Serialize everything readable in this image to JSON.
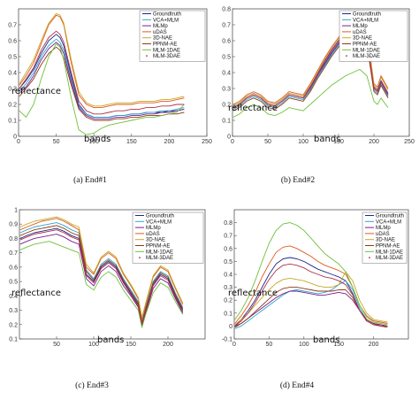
{
  "legend_labels": [
    "Groundtruth",
    "VCA+MLM",
    "MLMp",
    "uDAS",
    "3D-NAE",
    "PPNM-AE",
    "MLM-1DAE",
    "MLM-3DAE"
  ],
  "series_colors": [
    "#1f2a8a",
    "#2ca6c8",
    "#7a1f8f",
    "#e05a1a",
    "#c8a82a",
    "#8f3a1a",
    "#6ec13a",
    "#b03048"
  ],
  "chart_data": [
    {
      "type": "line",
      "caption": "(a) End#1",
      "xlabel": "bands",
      "ylabel": "reflectance",
      "xlim": [
        0,
        250
      ],
      "ylim": [
        0,
        0.8
      ],
      "xticks": [
        0,
        50,
        100,
        150,
        200,
        250
      ],
      "yticks": [
        0,
        0.1,
        0.2,
        0.3,
        0.4,
        0.5,
        0.6,
        0.7
      ],
      "x": [
        1,
        10,
        20,
        30,
        40,
        50,
        55,
        60,
        70,
        80,
        90,
        100,
        110,
        120,
        130,
        140,
        150,
        160,
        170,
        180,
        190,
        200,
        210,
        220
      ],
      "series": [
        {
          "name": "Groundtruth",
          "values": [
            0.3,
            0.35,
            0.42,
            0.52,
            0.6,
            0.64,
            0.62,
            0.57,
            0.38,
            0.2,
            0.14,
            0.12,
            0.12,
            0.12,
            0.13,
            0.13,
            0.14,
            0.14,
            0.15,
            0.15,
            0.15,
            0.16,
            0.16,
            0.17
          ]
        },
        {
          "name": "VCA+MLM",
          "values": [
            0.28,
            0.33,
            0.4,
            0.5,
            0.57,
            0.61,
            0.59,
            0.54,
            0.36,
            0.19,
            0.14,
            0.12,
            0.12,
            0.12,
            0.13,
            0.13,
            0.14,
            0.14,
            0.15,
            0.15,
            0.16,
            0.16,
            0.17,
            0.18
          ]
        },
        {
          "name": "MLMp",
          "values": [
            0.27,
            0.31,
            0.38,
            0.48,
            0.55,
            0.59,
            0.57,
            0.52,
            0.34,
            0.18,
            0.13,
            0.11,
            0.11,
            0.11,
            0.12,
            0.12,
            0.13,
            0.13,
            0.14,
            0.14,
            0.15,
            0.15,
            0.16,
            0.17
          ]
        },
        {
          "name": "uDAS",
          "values": [
            0.32,
            0.38,
            0.46,
            0.58,
            0.7,
            0.76,
            0.75,
            0.7,
            0.46,
            0.26,
            0.2,
            0.18,
            0.18,
            0.19,
            0.2,
            0.2,
            0.2,
            0.21,
            0.21,
            0.21,
            0.22,
            0.22,
            0.23,
            0.24
          ]
        },
        {
          "name": "3D-NAE",
          "values": [
            0.33,
            0.4,
            0.48,
            0.6,
            0.71,
            0.77,
            0.76,
            0.71,
            0.48,
            0.28,
            0.21,
            0.19,
            0.19,
            0.2,
            0.21,
            0.21,
            0.21,
            0.22,
            0.22,
            0.22,
            0.23,
            0.23,
            0.24,
            0.25
          ]
        },
        {
          "name": "PPNM-AE",
          "values": [
            0.25,
            0.3,
            0.36,
            0.45,
            0.52,
            0.56,
            0.54,
            0.49,
            0.32,
            0.17,
            0.12,
            0.1,
            0.1,
            0.1,
            0.11,
            0.11,
            0.12,
            0.12,
            0.13,
            0.13,
            0.13,
            0.14,
            0.14,
            0.15
          ]
        },
        {
          "name": "MLM-1DAE",
          "values": [
            0.16,
            0.12,
            0.2,
            0.36,
            0.5,
            0.58,
            0.56,
            0.48,
            0.24,
            0.04,
            0.01,
            0.02,
            0.05,
            0.07,
            0.08,
            0.09,
            0.1,
            0.11,
            0.12,
            0.12,
            0.13,
            0.14,
            0.15,
            0.2
          ]
        },
        {
          "name": "MLM-3DAE",
          "values": [
            0.3,
            0.36,
            0.43,
            0.54,
            0.62,
            0.66,
            0.64,
            0.59,
            0.4,
            0.22,
            0.16,
            0.14,
            0.14,
            0.15,
            0.16,
            0.16,
            0.17,
            0.17,
            0.18,
            0.18,
            0.19,
            0.19,
            0.2,
            0.2
          ]
        }
      ]
    },
    {
      "type": "line",
      "caption": "(b) End#2",
      "xlabel": "bands",
      "ylabel": "reflectance",
      "xlim": [
        0,
        250
      ],
      "ylim": [
        0,
        0.8
      ],
      "xticks": [
        0,
        50,
        100,
        150,
        200,
        250
      ],
      "yticks": [
        0,
        0.1,
        0.2,
        0.3,
        0.4,
        0.5,
        0.6,
        0.7,
        0.8
      ],
      "x": [
        1,
        10,
        20,
        30,
        40,
        50,
        60,
        70,
        80,
        90,
        100,
        110,
        120,
        130,
        140,
        150,
        160,
        170,
        180,
        185,
        190,
        200,
        205,
        210,
        220
      ],
      "series": [
        {
          "name": "Groundtruth",
          "values": [
            0.18,
            0.2,
            0.24,
            0.26,
            0.24,
            0.2,
            0.19,
            0.22,
            0.26,
            0.25,
            0.24,
            0.3,
            0.38,
            0.45,
            0.52,
            0.58,
            0.63,
            0.67,
            0.68,
            0.64,
            0.6,
            0.3,
            0.28,
            0.34,
            0.26
          ]
        },
        {
          "name": "VCA+MLM",
          "values": [
            0.17,
            0.19,
            0.23,
            0.25,
            0.23,
            0.19,
            0.18,
            0.21,
            0.25,
            0.24,
            0.23,
            0.29,
            0.37,
            0.44,
            0.51,
            0.57,
            0.62,
            0.66,
            0.67,
            0.63,
            0.59,
            0.29,
            0.27,
            0.33,
            0.25
          ]
        },
        {
          "name": "MLMp",
          "values": [
            0.19,
            0.21,
            0.25,
            0.27,
            0.25,
            0.21,
            0.2,
            0.23,
            0.27,
            0.26,
            0.25,
            0.31,
            0.39,
            0.47,
            0.54,
            0.6,
            0.65,
            0.69,
            0.7,
            0.66,
            0.62,
            0.31,
            0.29,
            0.35,
            0.27
          ]
        },
        {
          "name": "uDAS",
          "values": [
            0.2,
            0.22,
            0.26,
            0.28,
            0.26,
            0.22,
            0.21,
            0.24,
            0.28,
            0.27,
            0.26,
            0.33,
            0.41,
            0.49,
            0.56,
            0.62,
            0.68,
            0.73,
            0.75,
            0.7,
            0.66,
            0.33,
            0.31,
            0.38,
            0.3
          ]
        },
        {
          "name": "3D-NAE",
          "values": [
            0.19,
            0.21,
            0.25,
            0.27,
            0.25,
            0.21,
            0.2,
            0.23,
            0.27,
            0.26,
            0.25,
            0.32,
            0.4,
            0.48,
            0.55,
            0.61,
            0.67,
            0.72,
            0.74,
            0.69,
            0.65,
            0.32,
            0.3,
            0.37,
            0.29
          ]
        },
        {
          "name": "PPNM-AE",
          "values": [
            0.16,
            0.18,
            0.22,
            0.24,
            0.22,
            0.18,
            0.17,
            0.2,
            0.24,
            0.23,
            0.22,
            0.28,
            0.36,
            0.43,
            0.5,
            0.56,
            0.61,
            0.65,
            0.66,
            0.62,
            0.58,
            0.28,
            0.26,
            0.32,
            0.24
          ]
        },
        {
          "name": "MLM-1DAE",
          "values": [
            0.12,
            0.14,
            0.18,
            0.2,
            0.18,
            0.14,
            0.13,
            0.15,
            0.18,
            0.17,
            0.16,
            0.2,
            0.24,
            0.28,
            0.32,
            0.35,
            0.38,
            0.4,
            0.42,
            0.4,
            0.38,
            0.22,
            0.2,
            0.24,
            0.18
          ]
        },
        {
          "name": "MLM-3DAE",
          "values": [
            0.18,
            0.2,
            0.24,
            0.26,
            0.24,
            0.2,
            0.19,
            0.22,
            0.26,
            0.25,
            0.24,
            0.3,
            0.38,
            0.46,
            0.53,
            0.59,
            0.64,
            0.68,
            0.69,
            0.65,
            0.61,
            0.3,
            0.28,
            0.34,
            0.26
          ]
        }
      ]
    },
    {
      "type": "line",
      "caption": "(c) End#3",
      "xlabel": "bands",
      "ylabel": "reflectance",
      "xlim": [
        0,
        250
      ],
      "ylim": [
        0.1,
        1.0
      ],
      "xticks": [
        50,
        100,
        150,
        200
      ],
      "yticks": [
        0.1,
        0.2,
        0.3,
        0.4,
        0.5,
        0.6,
        0.7,
        0.8,
        0.9,
        1
      ],
      "x": [
        1,
        10,
        20,
        30,
        40,
        50,
        60,
        70,
        80,
        90,
        100,
        110,
        120,
        130,
        140,
        150,
        160,
        165,
        170,
        180,
        190,
        200,
        210,
        220
      ],
      "series": [
        {
          "name": "Groundtruth",
          "values": [
            0.8,
            0.82,
            0.84,
            0.85,
            0.86,
            0.87,
            0.85,
            0.82,
            0.8,
            0.55,
            0.5,
            0.6,
            0.64,
            0.6,
            0.5,
            0.42,
            0.34,
            0.2,
            0.3,
            0.48,
            0.55,
            0.52,
            0.4,
            0.3
          ]
        },
        {
          "name": "VCA+MLM",
          "values": [
            0.84,
            0.86,
            0.88,
            0.89,
            0.9,
            0.91,
            0.89,
            0.86,
            0.84,
            0.58,
            0.52,
            0.62,
            0.66,
            0.62,
            0.52,
            0.44,
            0.36,
            0.22,
            0.32,
            0.5,
            0.57,
            0.54,
            0.42,
            0.32
          ]
        },
        {
          "name": "MLMp",
          "values": [
            0.76,
            0.78,
            0.8,
            0.81,
            0.82,
            0.83,
            0.81,
            0.78,
            0.76,
            0.52,
            0.47,
            0.57,
            0.61,
            0.57,
            0.47,
            0.4,
            0.32,
            0.19,
            0.28,
            0.45,
            0.52,
            0.49,
            0.38,
            0.28
          ]
        },
        {
          "name": "uDAS",
          "values": [
            0.86,
            0.88,
            0.9,
            0.92,
            0.93,
            0.94,
            0.92,
            0.89,
            0.86,
            0.6,
            0.55,
            0.66,
            0.7,
            0.66,
            0.55,
            0.47,
            0.38,
            0.24,
            0.34,
            0.53,
            0.6,
            0.57,
            0.45,
            0.34
          ]
        },
        {
          "name": "3D-NAE",
          "values": [
            0.88,
            0.9,
            0.92,
            0.93,
            0.94,
            0.95,
            0.93,
            0.9,
            0.88,
            0.62,
            0.56,
            0.67,
            0.71,
            0.67,
            0.56,
            0.48,
            0.39,
            0.25,
            0.35,
            0.54,
            0.61,
            0.58,
            0.46,
            0.35
          ]
        },
        {
          "name": "PPNM-AE",
          "values": [
            0.82,
            0.84,
            0.86,
            0.87,
            0.88,
            0.89,
            0.87,
            0.84,
            0.82,
            0.57,
            0.51,
            0.61,
            0.65,
            0.61,
            0.51,
            0.43,
            0.35,
            0.21,
            0.31,
            0.49,
            0.56,
            0.53,
            0.41,
            0.31
          ]
        },
        {
          "name": "MLM-1DAE",
          "values": [
            0.72,
            0.74,
            0.76,
            0.77,
            0.78,
            0.76,
            0.74,
            0.72,
            0.7,
            0.48,
            0.44,
            0.53,
            0.57,
            0.53,
            0.44,
            0.37,
            0.3,
            0.18,
            0.27,
            0.42,
            0.49,
            0.46,
            0.36,
            0.27
          ]
        },
        {
          "name": "MLM-3DAE",
          "values": [
            0.79,
            0.81,
            0.83,
            0.84,
            0.85,
            0.86,
            0.84,
            0.81,
            0.79,
            0.54,
            0.49,
            0.59,
            0.63,
            0.59,
            0.49,
            0.41,
            0.33,
            0.2,
            0.29,
            0.47,
            0.54,
            0.51,
            0.39,
            0.29
          ]
        }
      ]
    },
    {
      "type": "line",
      "caption": "(d) End#4",
      "xlabel": "bands",
      "ylabel": "reflectance",
      "xlim": [
        0,
        250
      ],
      "ylim": [
        -0.1,
        0.9
      ],
      "xticks": [
        0,
        50,
        100,
        150,
        200
      ],
      "yticks": [
        -0.1,
        0,
        0.1,
        0.2,
        0.3,
        0.4,
        0.5,
        0.6,
        0.7,
        0.8
      ],
      "x": [
        1,
        10,
        20,
        30,
        40,
        50,
        60,
        70,
        80,
        90,
        100,
        110,
        120,
        130,
        140,
        150,
        160,
        170,
        180,
        190,
        200,
        210,
        220
      ],
      "series": [
        {
          "name": "Groundtruth",
          "values": [
            0.0,
            0.05,
            0.12,
            0.2,
            0.3,
            0.4,
            0.48,
            0.52,
            0.53,
            0.52,
            0.5,
            0.47,
            0.44,
            0.42,
            0.4,
            0.38,
            0.35,
            0.25,
            0.12,
            0.04,
            0.01,
            0.0,
            0.0
          ]
        },
        {
          "name": "VCA+MLM",
          "values": [
            -0.02,
            0.0,
            0.04,
            0.08,
            0.12,
            0.16,
            0.2,
            0.24,
            0.27,
            0.28,
            0.27,
            0.26,
            0.25,
            0.26,
            0.28,
            0.32,
            0.35,
            0.28,
            0.14,
            0.05,
            0.02,
            0.01,
            0.0
          ]
        },
        {
          "name": "MLMp",
          "values": [
            0.0,
            0.02,
            0.06,
            0.1,
            0.14,
            0.18,
            0.22,
            0.25,
            0.27,
            0.27,
            0.26,
            0.25,
            0.24,
            0.24,
            0.25,
            0.26,
            0.25,
            0.2,
            0.12,
            0.05,
            0.02,
            0.01,
            0.0
          ]
        },
        {
          "name": "uDAS",
          "values": [
            0.02,
            0.08,
            0.16,
            0.26,
            0.38,
            0.48,
            0.57,
            0.61,
            0.62,
            0.6,
            0.57,
            0.54,
            0.5,
            0.47,
            0.45,
            0.43,
            0.4,
            0.3,
            0.16,
            0.08,
            0.04,
            0.03,
            0.02
          ]
        },
        {
          "name": "3D-NAE",
          "values": [
            0.01,
            0.05,
            0.1,
            0.16,
            0.22,
            0.28,
            0.33,
            0.36,
            0.37,
            0.36,
            0.35,
            0.33,
            0.31,
            0.3,
            0.3,
            0.32,
            0.42,
            0.35,
            0.2,
            0.1,
            0.05,
            0.04,
            0.03
          ]
        },
        {
          "name": "PPNM-AE",
          "values": [
            -0.01,
            0.02,
            0.06,
            0.11,
            0.16,
            0.21,
            0.26,
            0.29,
            0.3,
            0.3,
            0.29,
            0.28,
            0.27,
            0.27,
            0.27,
            0.28,
            0.28,
            0.22,
            0.12,
            0.05,
            0.02,
            0.0,
            -0.01
          ]
        },
        {
          "name": "MLM-1DAE",
          "values": [
            0.05,
            0.12,
            0.22,
            0.35,
            0.5,
            0.64,
            0.74,
            0.79,
            0.8,
            0.78,
            0.74,
            0.68,
            0.62,
            0.56,
            0.52,
            0.48,
            0.42,
            0.3,
            0.16,
            0.07,
            0.03,
            0.02,
            0.01
          ]
        },
        {
          "name": "MLM-3DAE",
          "values": [
            0.0,
            0.04,
            0.1,
            0.18,
            0.27,
            0.36,
            0.43,
            0.47,
            0.48,
            0.47,
            0.45,
            0.42,
            0.4,
            0.38,
            0.37,
            0.35,
            0.32,
            0.24,
            0.12,
            0.04,
            0.01,
            0.0,
            0.0
          ]
        }
      ]
    }
  ]
}
